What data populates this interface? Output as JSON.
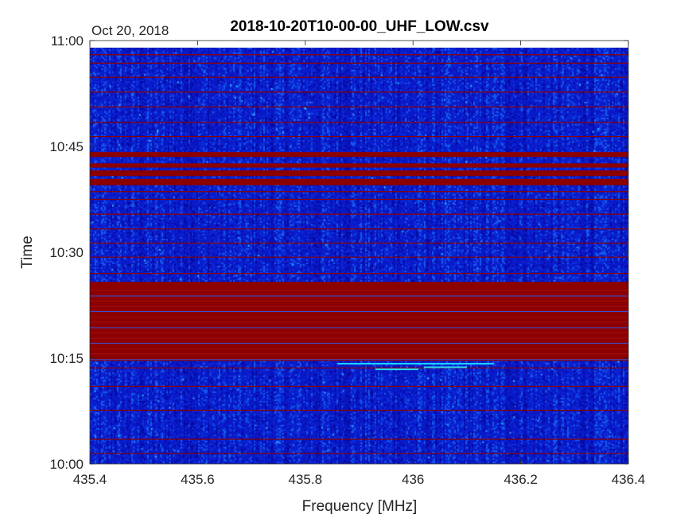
{
  "chart_data": {
    "type": "heatmap",
    "title": "2018-10-20T10-00-00_UHF_LOW.csv",
    "date_label": "Oct 20, 2018",
    "xlabel": "Frequency [MHz]",
    "ylabel": "Time",
    "xlim": [
      435.4,
      436.4
    ],
    "ylim": [
      "10:00",
      "11:00"
    ],
    "x_ticks": [
      435.4,
      435.6,
      435.8,
      436,
      436.2,
      436.4
    ],
    "x_tick_labels": [
      "435.4",
      "435.6",
      "435.8",
      "436",
      "436.2",
      "436.4"
    ],
    "y_ticks": [
      "10:00",
      "10:15",
      "10:30",
      "10:45",
      "11:00"
    ],
    "data_time_range": [
      "10:00",
      "10:59"
    ],
    "colormap": "jet",
    "colors": {
      "background": "#0a1ec8",
      "saturated": "#8c0000",
      "signal": "#22e0ff"
    },
    "saturated_bands": [
      {
        "start": "10:14.6",
        "end": "10:25.8"
      },
      {
        "start": "10:39.5",
        "end": "10:40.4"
      },
      {
        "start": "10:40.8",
        "end": "10:41.6"
      },
      {
        "start": "10:42.0",
        "end": "10:42.6"
      },
      {
        "start": "10:43.5",
        "end": "10:44.2"
      }
    ],
    "thin_lines": [
      "10:01.5",
      "10:03.5",
      "10:07.6",
      "10:11.0",
      "10:13.6",
      "10:27.0",
      "10:29.3",
      "10:31.3",
      "10:33.3",
      "10:35.4",
      "10:37.5",
      "10:38.6",
      "10:46.4",
      "10:48.4",
      "10:50.6",
      "10:52.7",
      "10:54.8",
      "10:56.8",
      "10:58.0"
    ],
    "signal_traces": [
      {
        "f0": 435.86,
        "f1": 436.15,
        "t": "10:14.2"
      },
      {
        "f0": 435.93,
        "f1": 436.01,
        "t": "10:13.4"
      },
      {
        "f0": 436.02,
        "f1": 436.1,
        "t": "10:13.7"
      }
    ]
  }
}
